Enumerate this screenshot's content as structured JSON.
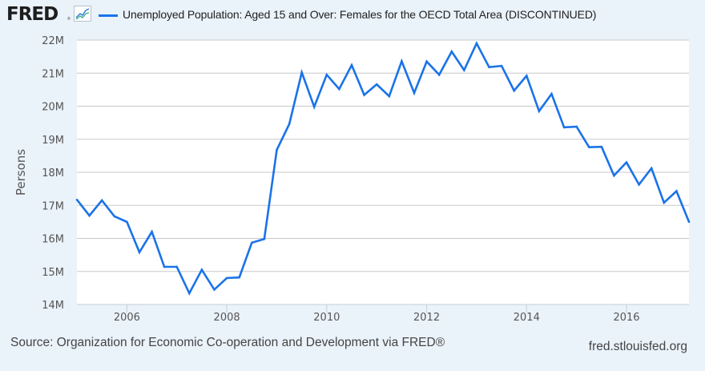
{
  "header": {
    "logo_text": "FRED",
    "logo_icon": "fred-chart-icon",
    "title": "Unemployed Population: Aged 15 and Over: Females for the OECD Total Area (DISCONTINUED)"
  },
  "footer": {
    "source": "Source: Organization for Economic Co-operation and Development via FRED®",
    "site": "fred.stlouisfed.org"
  },
  "colors": {
    "series": "#1a73e8",
    "grid": "#c8c8c8",
    "background": "#eaf2fa",
    "plot_bg": "#ffffff"
  },
  "chart_data": {
    "type": "line",
    "title": "Unemployed Population: Aged 15 and Over: Females for the OECD Total Area (DISCONTINUED)",
    "xlabel": "",
    "ylabel": "Persons",
    "xlim": [
      2005.0,
      2017.25
    ],
    "ylim": [
      14000000,
      22000000
    ],
    "grid": true,
    "legend": "top-left",
    "y_ticks": [
      {
        "value": 14000000,
        "label": "14M"
      },
      {
        "value": 15000000,
        "label": "15M"
      },
      {
        "value": 16000000,
        "label": "16M"
      },
      {
        "value": 17000000,
        "label": "17M"
      },
      {
        "value": 18000000,
        "label": "18M"
      },
      {
        "value": 19000000,
        "label": "19M"
      },
      {
        "value": 20000000,
        "label": "20M"
      },
      {
        "value": 21000000,
        "label": "21M"
      },
      {
        "value": 22000000,
        "label": "22M"
      }
    ],
    "x_ticks": [
      {
        "value": 2006,
        "label": "2006"
      },
      {
        "value": 2008,
        "label": "2008"
      },
      {
        "value": 2010,
        "label": "2010"
      },
      {
        "value": 2012,
        "label": "2012"
      },
      {
        "value": 2014,
        "label": "2014"
      },
      {
        "value": 2016,
        "label": "2016"
      }
    ],
    "series": [
      {
        "name": "Unemployed Population: Aged 15 and Over: Females for the OECD Total Area (DISCONTINUED)",
        "x_start": 2005.0,
        "x_step": 0.25,
        "frequency": "quarterly",
        "values": [
          17170000,
          16690000,
          17150000,
          16670000,
          16500000,
          15580000,
          16200000,
          15140000,
          15140000,
          14340000,
          15050000,
          14450000,
          14800000,
          14820000,
          15870000,
          15980000,
          18680000,
          19460000,
          21020000,
          19980000,
          20950000,
          20520000,
          21240000,
          20340000,
          20660000,
          20300000,
          21360000,
          20400000,
          21350000,
          20950000,
          21650000,
          21090000,
          21900000,
          21180000,
          21220000,
          20470000,
          20920000,
          19850000,
          20370000,
          19360000,
          19380000,
          18760000,
          18770000,
          17900000,
          18300000,
          17630000,
          18120000,
          17080000,
          17430000,
          16500000
        ]
      }
    ]
  }
}
